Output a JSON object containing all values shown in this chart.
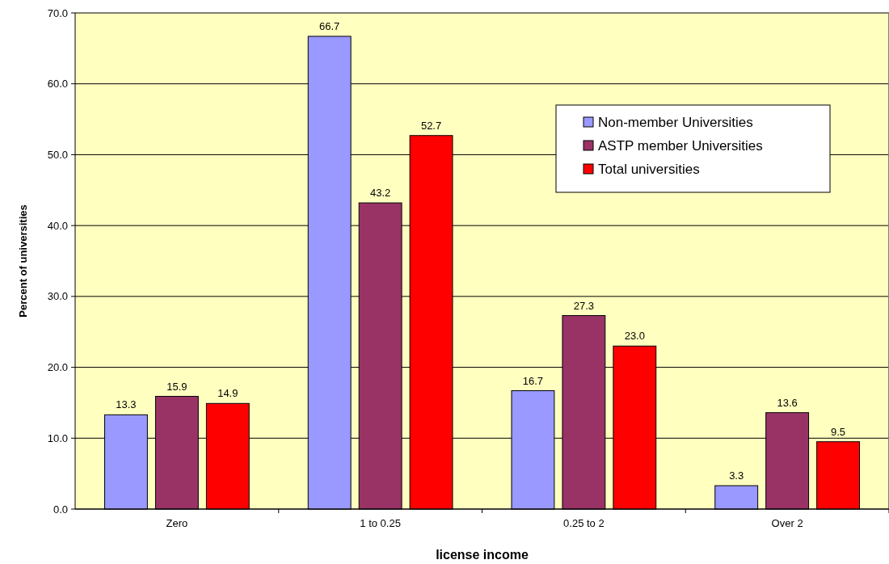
{
  "chart_data": {
    "type": "bar",
    "xlabel": "license income",
    "ylabel": "Percent of universities",
    "categories": [
      "Zero",
      "1 to 0.25",
      "0.25 to 2",
      "Over 2"
    ],
    "series": [
      {
        "name": "Non-member Universities",
        "color": "#9999ff",
        "values": [
          13.3,
          66.7,
          16.7,
          3.3
        ],
        "value_labels": [
          "13.3",
          "66.7",
          "16.7",
          "3.3"
        ]
      },
      {
        "name": "ASTP member Universities",
        "color": "#993366",
        "values": [
          15.9,
          43.2,
          27.3,
          13.6
        ],
        "value_labels": [
          "15.9",
          "43.2",
          "27.3",
          "13.6"
        ]
      },
      {
        "name": "Total universities",
        "color": "#ff0000",
        "values": [
          14.9,
          52.7,
          23.0,
          9.5
        ],
        "value_labels": [
          "14.9",
          "52.7",
          "23.0",
          "9.5"
        ]
      }
    ],
    "ylim": [
      0,
      70
    ],
    "yticks": [
      {
        "value": 0,
        "label": "0.0"
      },
      {
        "value": 10,
        "label": "10.0"
      },
      {
        "value": 20,
        "label": "20.0"
      },
      {
        "value": 30,
        "label": "30.0"
      },
      {
        "value": 40,
        "label": "40.0"
      },
      {
        "value": 50,
        "label": "50.0"
      },
      {
        "value": 60,
        "label": "60.0"
      },
      {
        "value": 70,
        "label": "70.0"
      }
    ],
    "grid": "y",
    "legend": "top right"
  }
}
